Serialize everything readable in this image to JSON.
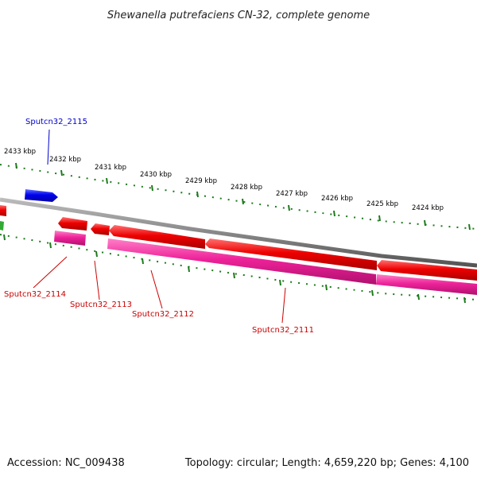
{
  "header": {
    "title": "Shewanella putrefaciens CN-32, complete genome"
  },
  "footer": {
    "accession": "Accession: NC_009438",
    "summary": "Topology: circular; Length: 4,659,220 bp; Genes: 4,100"
  },
  "ruler": {
    "labels": [
      "2433 kbp",
      "2432 kbp",
      "2431 kbp",
      "2430 kbp",
      "2429 kbp",
      "2428 kbp",
      "2427 kbp",
      "2426 kbp",
      "2425 kbp",
      "2424 kbp"
    ]
  },
  "genes": [
    {
      "id": "Sputcn32_2115",
      "strand": "forward",
      "color": "#0000ee"
    },
    {
      "id": "Sputcn32_2114",
      "strand": "reverse",
      "color": "#cc0000"
    },
    {
      "id": "Sputcn32_2113",
      "strand": "reverse",
      "color": "#cc0000"
    },
    {
      "id": "Sputcn32_2112",
      "strand": "reverse",
      "color": "#cc0000"
    },
    {
      "id": "Sputcn32_2111",
      "strand": "reverse",
      "color": "#cc0000"
    }
  ],
  "colors": {
    "backbone": "#888888",
    "tick_outer": "#1d7a1d",
    "tick_inner": "#1d7a1d",
    "cds_reverse": "#ee0000",
    "cds_reverse_feature": "#ee2299",
    "cds_forward": "#0000ee"
  }
}
